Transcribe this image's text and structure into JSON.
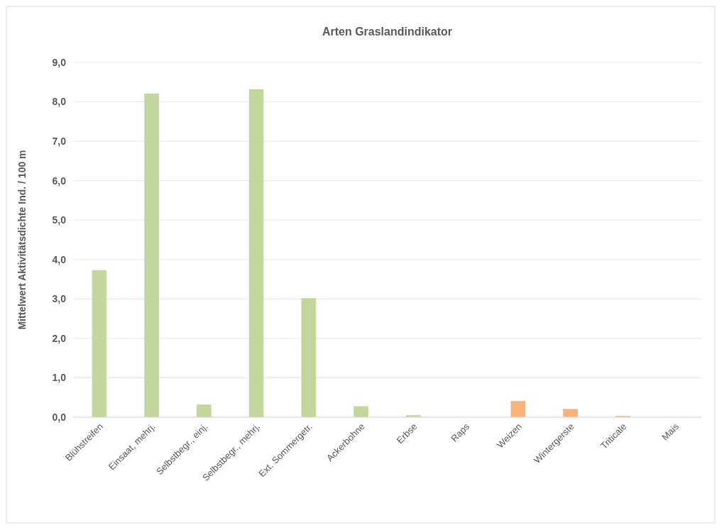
{
  "chart_data": {
    "type": "bar",
    "title": "Arten Graslandindikator",
    "ylabel": "Mittelwert Aktivitätsdichte Ind. / 100 m",
    "categories": [
      "Blühstreifen",
      "Einsaat, mehrj.",
      "Selbstbegr., einj.",
      "Selbstbegr., mehrj.",
      "Ext. Sommergetr.",
      "Ackerbohne",
      "Erbse",
      "Raps",
      "Weizen",
      "Wintergerste",
      "Triticale",
      "Mais"
    ],
    "values": [
      3.73,
      8.21,
      0.32,
      8.32,
      3.02,
      0.28,
      0.05,
      0,
      0.41,
      0.21,
      0.03,
      0
    ],
    "colors": [
      "#c3d69b",
      "#c3d69b",
      "#c3d69b",
      "#c3d69b",
      "#c3d69b",
      "#c3d69b",
      "#c3d69b",
      "#c3d69b",
      "#f9b27a",
      "#f9b27a",
      "#f9b27a",
      "#f9b27a"
    ],
    "ylim": [
      0,
      9
    ],
    "yticks": [
      {
        "value": 0,
        "label": "0,0"
      },
      {
        "value": 1,
        "label": "1,0"
      },
      {
        "value": 2,
        "label": "2,0"
      },
      {
        "value": 3,
        "label": "3,0"
      },
      {
        "value": 4,
        "label": "4,0"
      },
      {
        "value": 5,
        "label": "5,0"
      },
      {
        "value": 6,
        "label": "6,0"
      },
      {
        "value": 7,
        "label": "7,0"
      },
      {
        "value": 8,
        "label": "8,0"
      },
      {
        "value": 9,
        "label": "9,0"
      }
    ],
    "grid": "y"
  }
}
